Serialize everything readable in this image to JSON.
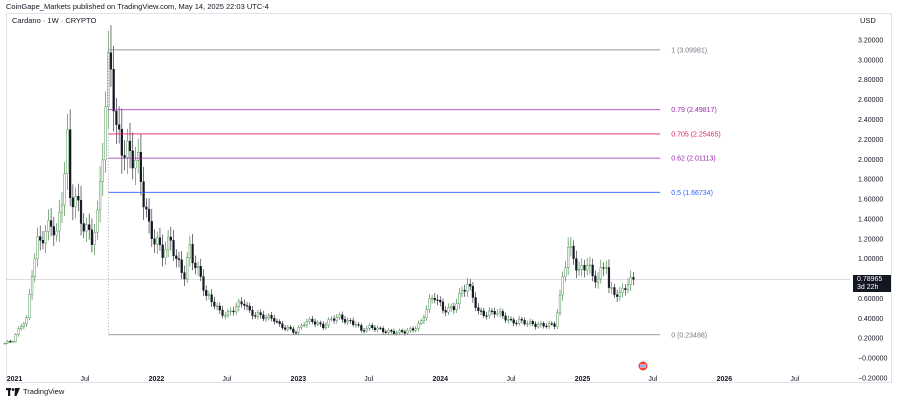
{
  "header": {
    "published": "CoinGape_Markets published on TradingView.com, May 14, 2025 22:03 UTC-4",
    "symbol": "Cardano · 1W · CRYPTO",
    "currency": "USD"
  },
  "footer": {
    "brand": "TradingView",
    "logo_icon": "tradingview-logo-icon"
  },
  "event_icon": "flag-event-icon",
  "current_price": {
    "value": "0.78965",
    "countdown": "3d 22h"
  },
  "colors": {
    "up": "#26a69a",
    "down": "#131722",
    "up_body": "#4caf50"
  },
  "chart_data": {
    "type": "candlestick",
    "title": "Cardano · 1W · CRYPTO",
    "ylim": [
      -0.2,
      3.3
    ],
    "y_ticks": [
      "3.20000",
      "3.00000",
      "2.80000",
      "2.60000",
      "2.40000",
      "2.20000",
      "2.00000",
      "1.80000",
      "1.60000",
      "1.40000",
      "1.20000",
      "1.00000",
      "0.80000",
      "0.60000",
      "0.40000",
      "0.20000",
      "−0.00000",
      "−0.20000"
    ],
    "y_tick_values": [
      3.2,
      3.0,
      2.8,
      2.6,
      2.4,
      2.2,
      2.0,
      1.8,
      1.6,
      1.4,
      1.2,
      1.0,
      0.8,
      0.6,
      0.4,
      0.2,
      0,
      -0.2
    ],
    "x_ticks": [
      {
        "label": "2021",
        "date": "2021-01-01",
        "bold": true
      },
      {
        "label": "Jul",
        "date": "2021-07-01",
        "bold": false
      },
      {
        "label": "2022",
        "date": "2022-01-01",
        "bold": true
      },
      {
        "label": "Jul",
        "date": "2022-07-01",
        "bold": false
      },
      {
        "label": "2023",
        "date": "2023-01-01",
        "bold": true
      },
      {
        "label": "Jul",
        "date": "2023-07-01",
        "bold": false
      },
      {
        "label": "2024",
        "date": "2024-01-01",
        "bold": true
      },
      {
        "label": "Jul",
        "date": "2024-07-01",
        "bold": false
      },
      {
        "label": "2025",
        "date": "2025-01-01",
        "bold": true
      },
      {
        "label": "Jul",
        "date": "2025-07-01",
        "bold": false
      },
      {
        "label": "2026",
        "date": "2026-01-01",
        "bold": true
      },
      {
        "label": "Jul",
        "date": "2026-07-01",
        "bold": false
      }
    ],
    "fib_start_date": "2021-08-30",
    "fib_end_date": "2025-07-20",
    "fib_levels": [
      {
        "label": "1 (3.09981)",
        "value": 3.09981,
        "color": "#787b86"
      },
      {
        "label": "0.79 (2.49817)",
        "value": 2.49817,
        "color": "#9c27b0"
      },
      {
        "label": "0.705 (2.25465)",
        "value": 2.25465,
        "color": "#e91e63"
      },
      {
        "label": "0.62 (2.01113)",
        "value": 2.01113,
        "color": "#9c27b0"
      },
      {
        "label": "0.5 (1.66734)",
        "value": 1.66734,
        "color": "#2962ff"
      },
      {
        "label": "0 (0.23488)",
        "value": 0.23488,
        "color": "#787b86"
      }
    ],
    "current_price_line": 0.78965,
    "close_series": {
      "start_date": "2020-12-07",
      "points": [
        [
          "2020-12-07",
          0.15
        ],
        [
          "2020-12-28",
          0.17
        ],
        [
          "2021-01-18",
          0.33
        ],
        [
          "2021-02-01",
          0.4
        ],
        [
          "2021-02-15",
          0.9
        ],
        [
          "2021-03-01",
          1.15
        ],
        [
          "2021-03-22",
          1.2
        ],
        [
          "2021-04-05",
          1.35
        ],
        [
          "2021-04-19",
          1.25
        ],
        [
          "2021-05-03",
          1.7
        ],
        [
          "2021-05-17",
          2.2
        ],
        [
          "2021-05-24",
          1.6
        ],
        [
          "2021-06-07",
          1.55
        ],
        [
          "2021-06-21",
          1.35
        ],
        [
          "2021-07-05",
          1.3
        ],
        [
          "2021-07-19",
          1.25
        ],
        [
          "2021-08-02",
          1.45
        ],
        [
          "2021-08-16",
          2.1
        ],
        [
          "2021-08-30",
          2.8
        ],
        [
          "2021-09-06",
          2.85
        ],
        [
          "2021-09-20",
          2.25
        ],
        [
          "2021-10-04",
          2.2
        ],
        [
          "2021-10-18",
          2.15
        ],
        [
          "2021-11-01",
          2.05
        ],
        [
          "2021-11-15",
          1.9
        ],
        [
          "2021-11-29",
          1.55
        ],
        [
          "2021-12-13",
          1.3
        ],
        [
          "2022-01-03",
          1.2
        ],
        [
          "2022-01-17",
          1.1
        ],
        [
          "2022-02-07",
          1.15
        ],
        [
          "2022-02-21",
          0.95
        ],
        [
          "2022-03-14",
          0.85
        ],
        [
          "2022-03-28",
          1.15
        ],
        [
          "2022-04-11",
          0.95
        ],
        [
          "2022-04-25",
          0.8
        ],
        [
          "2022-05-09",
          0.6
        ],
        [
          "2022-05-30",
          0.55
        ],
        [
          "2022-06-13",
          0.48
        ],
        [
          "2022-07-04",
          0.45
        ],
        [
          "2022-07-25",
          0.5
        ],
        [
          "2022-08-15",
          0.55
        ],
        [
          "2022-08-29",
          0.47
        ],
        [
          "2022-09-19",
          0.45
        ],
        [
          "2022-10-10",
          0.4
        ],
        [
          "2022-10-31",
          0.38
        ],
        [
          "2022-11-14",
          0.33
        ],
        [
          "2022-12-05",
          0.31
        ],
        [
          "2022-12-26",
          0.26
        ],
        [
          "2023-01-16",
          0.34
        ],
        [
          "2023-02-06",
          0.38
        ],
        [
          "2023-03-06",
          0.33
        ],
        [
          "2023-03-27",
          0.38
        ],
        [
          "2023-04-17",
          0.4
        ],
        [
          "2023-05-08",
          0.38
        ],
        [
          "2023-05-29",
          0.36
        ],
        [
          "2023-06-12",
          0.27
        ],
        [
          "2023-07-03",
          0.3
        ],
        [
          "2023-07-24",
          0.3
        ],
        [
          "2023-08-14",
          0.28
        ],
        [
          "2023-09-11",
          0.25
        ],
        [
          "2023-10-02",
          0.26
        ],
        [
          "2023-10-23",
          0.3
        ],
        [
          "2023-11-13",
          0.37
        ],
        [
          "2023-12-04",
          0.55
        ],
        [
          "2023-12-18",
          0.6
        ],
        [
          "2024-01-08",
          0.5
        ],
        [
          "2024-02-05",
          0.52
        ],
        [
          "2024-02-26",
          0.65
        ],
        [
          "2024-03-11",
          0.72
        ],
        [
          "2024-03-25",
          0.62
        ],
        [
          "2024-04-08",
          0.48
        ],
        [
          "2024-04-29",
          0.45
        ],
        [
          "2024-05-20",
          0.45
        ],
        [
          "2024-06-10",
          0.42
        ],
        [
          "2024-07-01",
          0.38
        ],
        [
          "2024-07-22",
          0.38
        ],
        [
          "2024-08-12",
          0.34
        ],
        [
          "2024-09-02",
          0.33
        ],
        [
          "2024-09-30",
          0.35
        ],
        [
          "2024-10-21",
          0.33
        ],
        [
          "2024-11-04",
          0.58
        ],
        [
          "2024-11-11",
          0.78
        ],
        [
          "2024-11-25",
          1.1
        ],
        [
          "2024-12-09",
          1.05
        ],
        [
          "2024-12-23",
          0.9
        ],
        [
          "2025-01-13",
          0.95
        ],
        [
          "2025-01-27",
          0.78
        ],
        [
          "2025-02-10",
          0.78
        ],
        [
          "2025-03-03",
          1.0
        ],
        [
          "2025-03-10",
          0.72
        ],
        [
          "2025-03-24",
          0.68
        ],
        [
          "2025-04-07",
          0.62
        ],
        [
          "2025-04-21",
          0.7
        ],
        [
          "2025-05-05",
          0.75
        ],
        [
          "2025-05-12",
          0.78965
        ]
      ]
    }
  }
}
